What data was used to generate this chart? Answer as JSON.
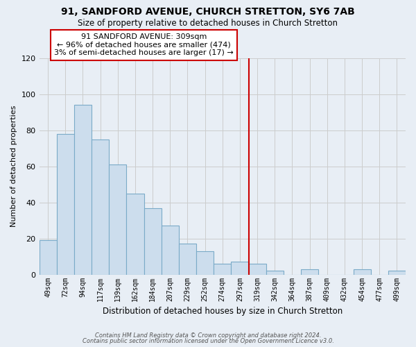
{
  "title": "91, SANDFORD AVENUE, CHURCH STRETTON, SY6 7AB",
  "subtitle": "Size of property relative to detached houses in Church Stretton",
  "xlabel": "Distribution of detached houses by size in Church Stretton",
  "ylabel": "Number of detached properties",
  "bar_labels": [
    "49sqm",
    "72sqm",
    "94sqm",
    "117sqm",
    "139sqm",
    "162sqm",
    "184sqm",
    "207sqm",
    "229sqm",
    "252sqm",
    "274sqm",
    "297sqm",
    "319sqm",
    "342sqm",
    "364sqm",
    "387sqm",
    "409sqm",
    "432sqm",
    "454sqm",
    "477sqm",
    "499sqm"
  ],
  "bar_values": [
    19,
    78,
    94,
    75,
    61,
    45,
    37,
    27,
    17,
    13,
    6,
    7,
    6,
    2,
    0,
    3,
    0,
    0,
    3,
    0,
    2
  ],
  "bar_color": "#ccdded",
  "bar_edge_color": "#7aaac8",
  "vline_x": 11.5,
  "vline_color": "#cc0000",
  "annotation_text": "91 SANDFORD AVENUE: 309sqm\n← 96% of detached houses are smaller (474)\n3% of semi-detached houses are larger (17) →",
  "annotation_box_color": "#ffffff",
  "annotation_box_edge": "#cc0000",
  "ylim": [
    0,
    120
  ],
  "yticks": [
    0,
    20,
    40,
    60,
    80,
    100,
    120
  ],
  "footer_line1": "Contains HM Land Registry data © Crown copyright and database right 2024.",
  "footer_line2": "Contains public sector information licensed under the Open Government Licence v3.0.",
  "grid_color": "#cccccc",
  "background_color": "#e8eef5",
  "plot_bg_color": "#e8eef5"
}
